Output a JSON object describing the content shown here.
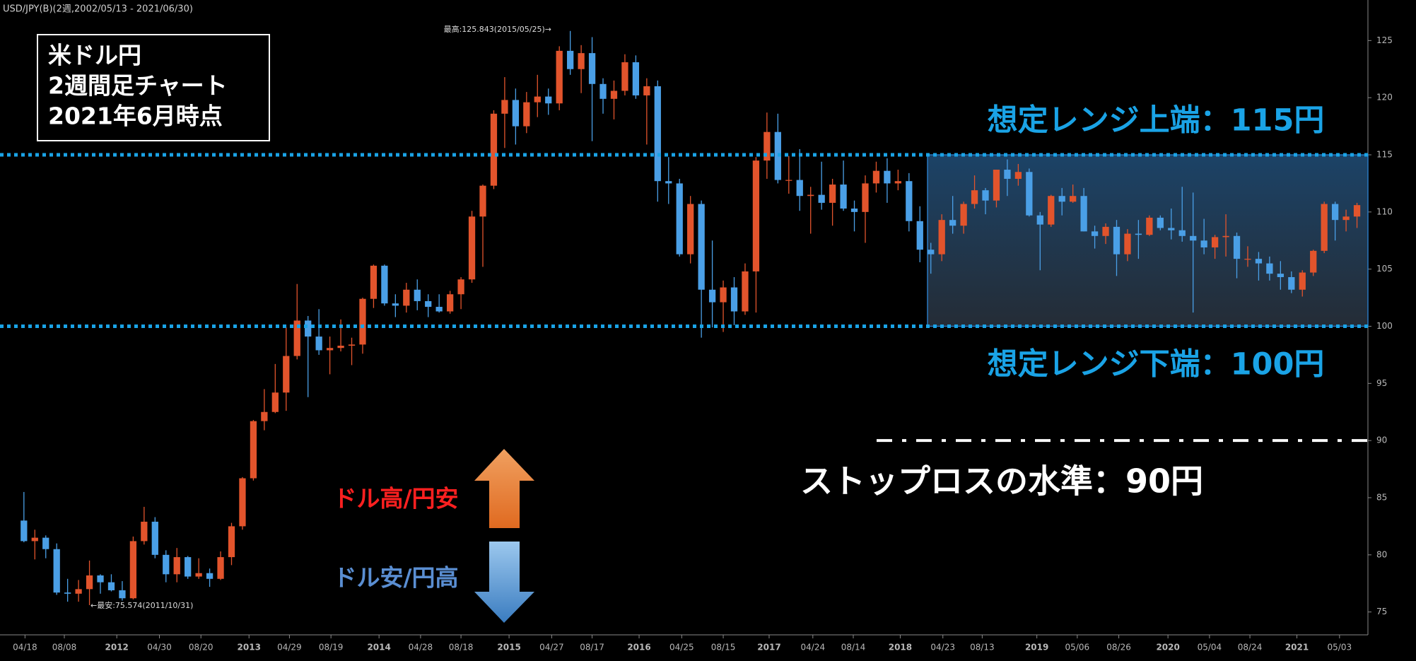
{
  "chart_data": {
    "type": "candlestick",
    "title": "USD/JPY(B)(2週,2002/05/13 - 2021/06/30)",
    "up_color": "#e2542c",
    "down_color": "#4a9fe6",
    "open": [
      83.0,
      81.2,
      81.5,
      80.5,
      76.7,
      76.6,
      77.0,
      78.2,
      77.6,
      76.9,
      76.2,
      81.2,
      82.9,
      80.0,
      78.3,
      79.8,
      78.1,
      78.4,
      77.9,
      79.8,
      82.5,
      86.7,
      91.7,
      92.5,
      94.2,
      97.4,
      100.5,
      99.1,
      97.9,
      98.1,
      98.3,
      98.4,
      102.4,
      105.3,
      102.0,
      101.8,
      103.2,
      102.2,
      101.7,
      101.3,
      102.8,
      104.1,
      109.6,
      112.3,
      118.6,
      119.8,
      117.5,
      119.6,
      120.1,
      119.5,
      124.1,
      122.5,
      123.9,
      121.2,
      119.9,
      120.6,
      123.1,
      120.2,
      121.0,
      112.7,
      112.5,
      106.3,
      110.7,
      103.2,
      102.1,
      103.4,
      101.3,
      104.8,
      114.5,
      117.0,
      112.8,
      112.8,
      111.4,
      111.5,
      110.8,
      112.4,
      110.3,
      110.0,
      112.5,
      113.6,
      112.5,
      112.7,
      109.2,
      106.7,
      106.3,
      109.3,
      108.8,
      110.7,
      111.9,
      111.0,
      113.7,
      112.9,
      113.5,
      109.7,
      108.9,
      111.4,
      110.9,
      111.4,
      108.3,
      107.9,
      108.7,
      106.3,
      108.1,
      108.0,
      109.5,
      108.6,
      108.4,
      107.9,
      107.5,
      106.9,
      107.8,
      107.9,
      105.9,
      105.9,
      105.5,
      104.6,
      104.3,
      103.2,
      104.7,
      106.6,
      110.7,
      109.3,
      109.6
    ],
    "high": [
      85.5,
      82.2,
      81.7,
      81.0,
      77.9,
      77.8,
      79.5,
      78.3,
      78.3,
      77.7,
      81.6,
      84.2,
      83.3,
      80.4,
      80.6,
      79.9,
      79.7,
      78.8,
      80.3,
      82.8,
      86.8,
      91.8,
      94.5,
      96.7,
      99.9,
      103.7,
      100.9,
      101.5,
      99.1,
      100.6,
      99.0,
      102.5,
      105.4,
      105.4,
      102.8,
      103.8,
      104.1,
      102.8,
      102.8,
      103.1,
      104.3,
      110.1,
      112.4,
      118.9,
      121.8,
      120.8,
      120.5,
      122.0,
      120.8,
      124.5,
      125.84,
      124.6,
      125.3,
      121.7,
      121.5,
      123.8,
      123.7,
      121.7,
      121.5,
      114.8,
      112.9,
      111.4,
      111.0,
      107.5,
      104.0,
      104.3,
      105.5,
      114.8,
      118.7,
      118.6,
      114.9,
      115.5,
      112.2,
      114.4,
      112.9,
      114.5,
      111.0,
      113.2,
      114.4,
      114.7,
      113.7,
      113.4,
      110.5,
      107.3,
      109.8,
      111.4,
      110.9,
      113.2,
      112.1,
      113.7,
      114.6,
      114.2,
      113.8,
      110.0,
      111.5,
      112.1,
      112.4,
      112.1,
      108.8,
      109.0,
      109.3,
      108.5,
      109.3,
      109.7,
      109.7,
      110.3,
      112.2,
      111.7,
      109.4,
      108.0,
      109.8,
      108.2,
      107.0,
      106.5,
      106.1,
      105.7,
      104.8,
      104.9,
      106.7,
      110.9,
      110.9,
      110.2,
      110.8
    ],
    "low": [
      81.1,
      79.6,
      79.7,
      76.5,
      75.9,
      75.9,
      75.6,
      76.6,
      76.8,
      76.0,
      76.1,
      80.9,
      79.7,
      77.6,
      77.6,
      77.9,
      77.9,
      77.2,
      77.8,
      79.1,
      82.2,
      86.5,
      90.9,
      92.4,
      92.6,
      97.1,
      93.8,
      97.5,
      95.8,
      97.8,
      96.6,
      97.6,
      101.6,
      101.8,
      100.8,
      101.2,
      101.4,
      100.8,
      101.2,
      101.1,
      101.5,
      103.8,
      105.2,
      112.0,
      115.6,
      115.9,
      116.9,
      118.3,
      118.5,
      118.9,
      122.0,
      120.4,
      116.2,
      118.6,
      118.1,
      120.2,
      119.9,
      115.9,
      110.9,
      110.7,
      106.1,
      105.5,
      99.0,
      99.9,
      99.5,
      100.1,
      101.0,
      101.2,
      112.9,
      112.5,
      111.6,
      110.1,
      108.1,
      110.2,
      108.8,
      110.1,
      108.3,
      107.3,
      111.7,
      110.8,
      111.9,
      108.3,
      105.6,
      104.6,
      105.7,
      108.1,
      108.1,
      110.3,
      109.8,
      110.4,
      111.4,
      112.3,
      109.6,
      104.9,
      108.7,
      109.7,
      110.8,
      108.3,
      106.8,
      107.2,
      104.4,
      105.7,
      105.9,
      107.9,
      108.4,
      107.6,
      107.4,
      101.2,
      106.3,
      105.9,
      106.1,
      104.2,
      105.2,
      104.0,
      104.0,
      103.2,
      102.9,
      102.6,
      104.4,
      106.4,
      107.5,
      108.3,
      108.6
    ],
    "close": [
      81.2,
      81.5,
      80.5,
      76.7,
      76.6,
      77.0,
      78.2,
      77.6,
      76.9,
      76.2,
      81.2,
      82.9,
      80.0,
      78.3,
      79.8,
      78.1,
      78.4,
      77.9,
      79.8,
      82.5,
      86.7,
      91.7,
      92.5,
      94.2,
      97.4,
      100.5,
      99.1,
      97.9,
      98.1,
      98.3,
      98.4,
      102.4,
      105.3,
      102.0,
      101.8,
      103.2,
      102.2,
      101.7,
      101.3,
      102.8,
      104.1,
      109.6,
      112.3,
      118.6,
      119.8,
      117.5,
      119.6,
      120.1,
      119.5,
      124.1,
      122.5,
      123.9,
      121.2,
      119.9,
      120.6,
      123.1,
      120.2,
      121.0,
      112.7,
      112.5,
      106.3,
      110.7,
      103.2,
      102.1,
      103.4,
      101.3,
      104.8,
      114.5,
      117.0,
      112.8,
      112.8,
      111.4,
      111.5,
      110.8,
      112.4,
      110.3,
      110.0,
      112.5,
      113.6,
      112.5,
      112.7,
      109.2,
      106.7,
      106.3,
      109.3,
      108.8,
      110.7,
      111.9,
      111.0,
      113.7,
      112.9,
      113.5,
      109.7,
      108.9,
      111.4,
      110.9,
      111.4,
      108.3,
      107.9,
      108.7,
      106.3,
      108.1,
      108.0,
      109.5,
      108.6,
      108.4,
      107.9,
      107.5,
      106.9,
      107.8,
      107.9,
      105.9,
      105.9,
      105.5,
      104.6,
      104.3,
      103.2,
      104.7,
      106.6,
      110.7,
      109.3,
      109.6,
      110.6
    ],
    "xlim": [
      -1.8,
      123
    ],
    "xticks": [
      {
        "value": 0.1,
        "label": "04/18"
      },
      {
        "value": 3.7,
        "label": "08/08"
      },
      {
        "value": 8.5,
        "label": "2012"
      },
      {
        "value": 12.4,
        "label": "04/30"
      },
      {
        "value": 16.2,
        "label": "08/20"
      },
      {
        "value": 20.6,
        "label": "2013"
      },
      {
        "value": 24.3,
        "label": "04/29"
      },
      {
        "value": 28.1,
        "label": "08/19"
      },
      {
        "value": 32.5,
        "label": "2014"
      },
      {
        "value": 36.3,
        "label": "04/28"
      },
      {
        "value": 40.0,
        "label": "08/18"
      },
      {
        "value": 44.4,
        "label": "2015"
      },
      {
        "value": 48.3,
        "label": "04/27"
      },
      {
        "value": 52.0,
        "label": "08/17"
      },
      {
        "value": 56.3,
        "label": "2016"
      },
      {
        "value": 60.2,
        "label": "04/25"
      },
      {
        "value": 64.0,
        "label": "08/15"
      },
      {
        "value": 68.2,
        "label": "2017"
      },
      {
        "value": 72.2,
        "label": "04/24"
      },
      {
        "value": 75.9,
        "label": "08/14"
      },
      {
        "value": 80.2,
        "label": "2018"
      },
      {
        "value": 84.1,
        "label": "04/23"
      },
      {
        "value": 87.7,
        "label": "08/13"
      },
      {
        "value": 92.7,
        "label": "2019"
      },
      {
        "value": 96.4,
        "label": "05/06"
      },
      {
        "value": 100.2,
        "label": "08/26"
      },
      {
        "value": 104.7,
        "label": "2020"
      },
      {
        "value": 108.5,
        "label": "05/04"
      },
      {
        "value": 112.2,
        "label": "08/24"
      },
      {
        "value": 116.5,
        "label": "2021"
      },
      {
        "value": 120.4,
        "label": "05/03"
      }
    ],
    "ylim": [
      73,
      128.3
    ],
    "yticks": [
      75,
      80,
      85,
      90,
      95,
      100,
      105,
      110,
      115,
      120,
      125
    ],
    "annotations": {
      "box": [
        "米ドル円",
        "2週間足チャート",
        "2021年6月時点"
      ],
      "high_note": "最高:125.843(2015/05/25)→",
      "low_note": "←最安:75.574(2011/10/31)",
      "range_upper": {
        "value": 115,
        "label": "想定レンジ上端：115円"
      },
      "range_lower": {
        "value": 100,
        "label": "想定レンジ下端：100円"
      },
      "stop_loss": {
        "value": 90,
        "label": "ストップロスの水準：90円"
      },
      "up_label": "ドル高/円安",
      "down_label": "ドル安/円高"
    }
  }
}
